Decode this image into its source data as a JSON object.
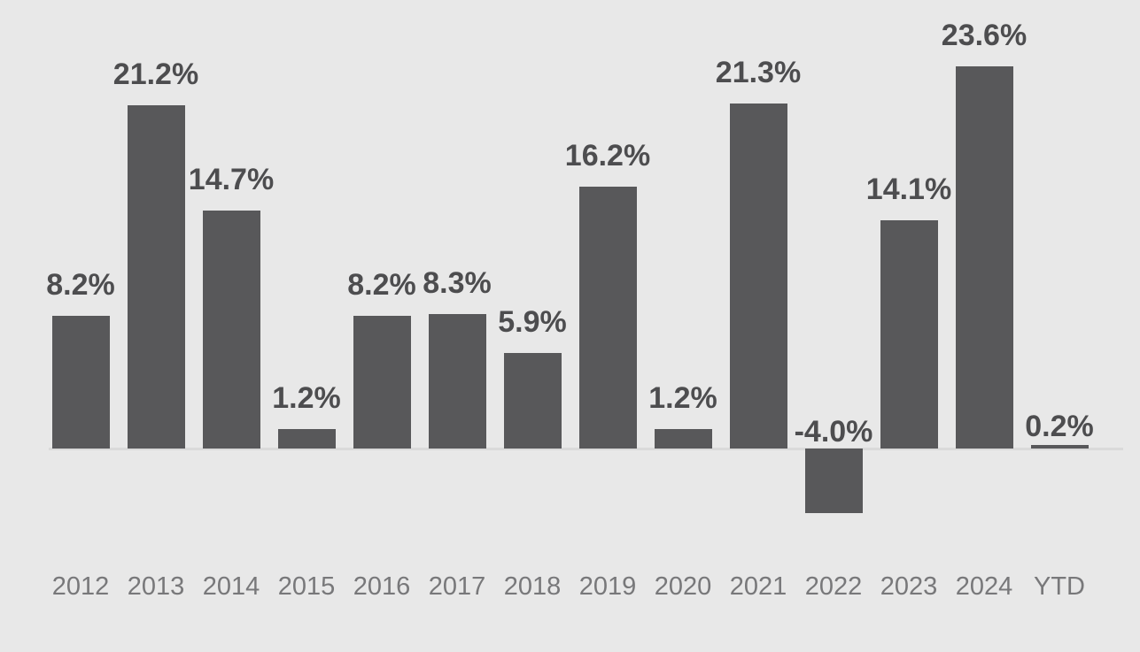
{
  "chart_data": {
    "type": "bar",
    "title": "",
    "xlabel": "",
    "ylabel": "",
    "categories": [
      "2012",
      "2013",
      "2014",
      "2015",
      "2016",
      "2017",
      "2018",
      "2019",
      "2020",
      "2021",
      "2022",
      "2023",
      "2024",
      "YTD"
    ],
    "values": [
      8.2,
      21.2,
      14.7,
      1.2,
      8.2,
      8.3,
      5.9,
      16.2,
      1.2,
      21.3,
      -4.0,
      14.1,
      23.6,
      0.2
    ],
    "data_labels": [
      "8.2%",
      "21.2%",
      "14.7%",
      "1.2%",
      "8.2%",
      "8.3%",
      "5.9%",
      "16.2%",
      "1.2%",
      "21.3%",
      "-4.0%",
      "14.1%",
      "23.6%",
      "0.2%"
    ],
    "ylim": [
      -6,
      26
    ],
    "grid": "off",
    "axes": "hidden-y",
    "legend": "none",
    "colors": {
      "background": "#e8e8e8",
      "bar": "#58585a",
      "value_label": "#4d4d4f",
      "axis_label": "#78787a",
      "baseline": "#dadada"
    }
  }
}
